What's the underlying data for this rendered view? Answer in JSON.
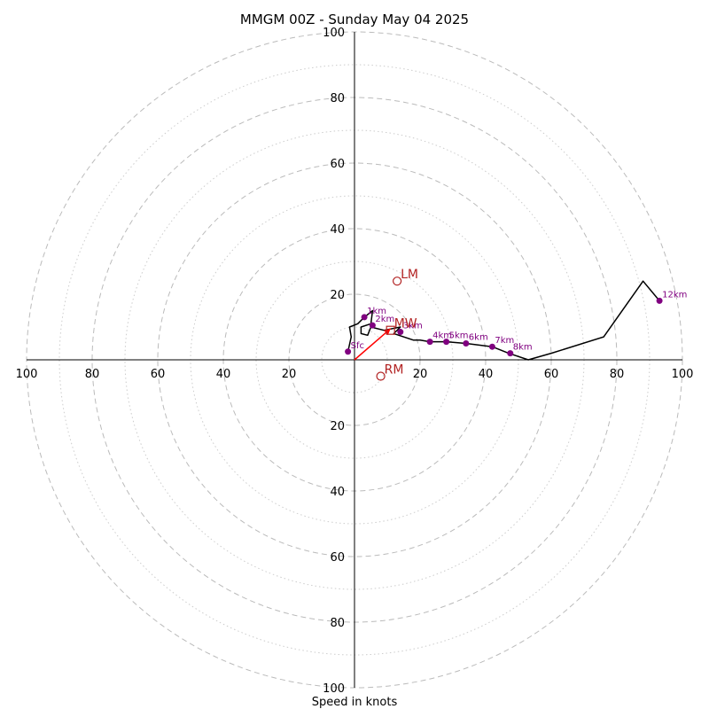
{
  "chart_data": {
    "type": "line",
    "title": "MMGM 00Z - Sunday May 04 2025",
    "xlabel": "Speed in knots",
    "ylabel": "",
    "xlim": [
      -100,
      100
    ],
    "ylim": [
      -100,
      100
    ],
    "major_rings": [
      20,
      40,
      60,
      80,
      100
    ],
    "minor_rings": [
      10,
      30,
      50,
      70,
      90
    ],
    "ticks": {
      "left": [
        "100",
        "80",
        "60",
        "40",
        "20"
      ],
      "right": [
        "20",
        "40",
        "60",
        "80",
        "100"
      ],
      "top": [
        "20",
        "40",
        "60",
        "80",
        "100"
      ],
      "bottom": [
        "20",
        "40",
        "60",
        "80",
        "100"
      ]
    },
    "hodograph_trace": [
      [
        -2,
        2.5
      ],
      [
        -1,
        7
      ],
      [
        -1.5,
        10
      ],
      [
        1,
        11
      ],
      [
        3,
        13
      ],
      [
        5.5,
        15
      ],
      [
        5,
        11
      ],
      [
        2,
        10
      ],
      [
        2,
        8
      ],
      [
        4,
        7.5
      ],
      [
        5,
        10
      ],
      [
        9,
        9
      ],
      [
        14,
        10
      ],
      [
        12,
        8
      ],
      [
        18,
        6
      ],
      [
        20,
        6
      ],
      [
        23,
        5.5
      ],
      [
        28,
        5.5
      ],
      [
        34,
        5
      ],
      [
        42,
        4
      ],
      [
        47,
        2
      ],
      [
        53,
        0
      ],
      [
        60,
        2
      ],
      [
        76,
        7
      ],
      [
        88,
        24
      ],
      [
        93,
        18
      ]
    ],
    "height_markers": [
      {
        "label": "Sfc",
        "u": -2,
        "v": 2.5
      },
      {
        "label": "1km",
        "u": 3,
        "v": 13
      },
      {
        "label": "2km",
        "u": 5.5,
        "v": 10.5
      },
      {
        "label": "3km",
        "u": 14,
        "v": 8.5
      },
      {
        "label": "4km",
        "u": 23,
        "v": 5.5
      },
      {
        "label": "5km",
        "u": 28,
        "v": 5.5
      },
      {
        "label": "6km",
        "u": 34,
        "v": 5
      },
      {
        "label": "7km",
        "u": 42,
        "v": 4
      },
      {
        "label": "8km",
        "u": 47.5,
        "v": 2
      },
      {
        "label": "12km",
        "u": 93,
        "v": 18
      }
    ],
    "storm_motions": [
      {
        "label": "LM",
        "u": 13,
        "v": 24,
        "marker": "circle"
      },
      {
        "label": "RM",
        "u": 8,
        "v": -5,
        "marker": "circle"
      },
      {
        "label": "MW",
        "u": 11,
        "v": 9,
        "marker": "square"
      }
    ],
    "shear_vector": {
      "from": [
        0,
        0
      ],
      "to": [
        11,
        9.5
      ]
    },
    "colors": {
      "trace": "#000000",
      "height_markers": "#800080",
      "storm_motion": "#b22222",
      "shear_vector": "#ff0000",
      "rings": "#bbbbbb"
    },
    "grid": true
  }
}
